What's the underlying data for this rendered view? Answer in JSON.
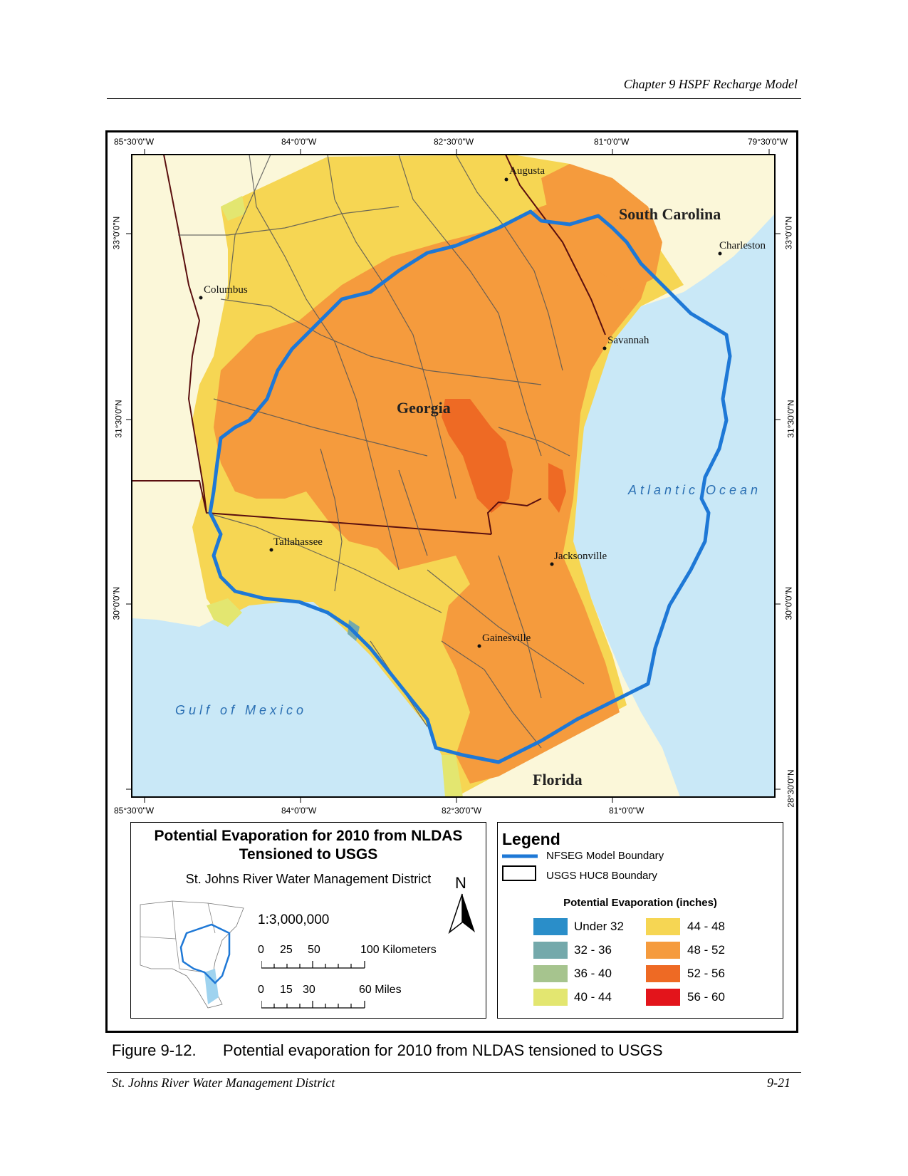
{
  "header": {
    "chapter_title": "Chapter 9 HSPF Recharge Model"
  },
  "map": {
    "ticks_top": [
      "85°30'0\"W",
      "84°0'0\"W",
      "82°30'0\"W",
      "81°0'0\"W",
      "79°30'0\"W"
    ],
    "ticks_bottom": [
      "85°30'0\"W",
      "84°0'0\"W",
      "82°30'0\"W",
      "81°0'0\"W"
    ],
    "ticks_left": [
      "33°0'0\"N",
      "31°30'0\"N",
      "30°0'0\"N"
    ],
    "ticks_right": [
      "33°0'0\"N",
      "31°30'0\"N",
      "30°0'0\"N",
      "28°30'0\"N"
    ],
    "cities": {
      "augusta": "Augusta",
      "charleston": "Charleston",
      "columbus": "Columbus",
      "savannah": "Savannah",
      "tallahassee": "Tallahassee",
      "jacksonville": "Jacksonville",
      "gainesville": "Gainesville"
    },
    "states": {
      "south_carolina": "South Carolina",
      "georgia": "Georgia",
      "florida": "Florida"
    },
    "water": {
      "atlantic": "Atlantic Ocean",
      "gulf": "Gulf of Mexico"
    },
    "colors": {
      "ocean": "#c9e8f7",
      "land": "#fbf7d9",
      "boundary": "#1e78d6"
    }
  },
  "title_box": {
    "title": "Potential Evaporation for 2010 from NLDAS Tensioned to USGS",
    "organization": "St. Johns River Water Management District",
    "scale": "1:3,000,000",
    "north_label": "N",
    "km_labels": [
      "0",
      "25",
      "50",
      "100 Kilometers"
    ],
    "mile_labels": [
      "0",
      "15",
      "30",
      "60 Miles"
    ]
  },
  "legend": {
    "title": "Legend",
    "lines": [
      "NFSEG Model Boundary",
      "USGS HUC8 Boundary"
    ],
    "pe_title": "Potential Evaporation (inches)",
    "classes": [
      {
        "label": "Under 32",
        "color": "#2a8ec9"
      },
      {
        "label": "32 - 36",
        "color": "#74a9ab"
      },
      {
        "label": "36 - 40",
        "color": "#a6c48e"
      },
      {
        "label": "40 - 44",
        "color": "#e3e670"
      },
      {
        "label": "44 - 48",
        "color": "#f6d653"
      },
      {
        "label": "48 - 52",
        "color": "#f59b3d"
      },
      {
        "label": "52 - 56",
        "color": "#ee6a24"
      },
      {
        "label": "56 - 60",
        "color": "#e3141b"
      }
    ]
  },
  "caption": {
    "number": "Figure 9-12.",
    "text": "Potential evaporation for 2010 from NLDAS tensioned to USGS"
  },
  "footer": {
    "left": "St. Johns River Water Management District",
    "right": "9-21"
  }
}
